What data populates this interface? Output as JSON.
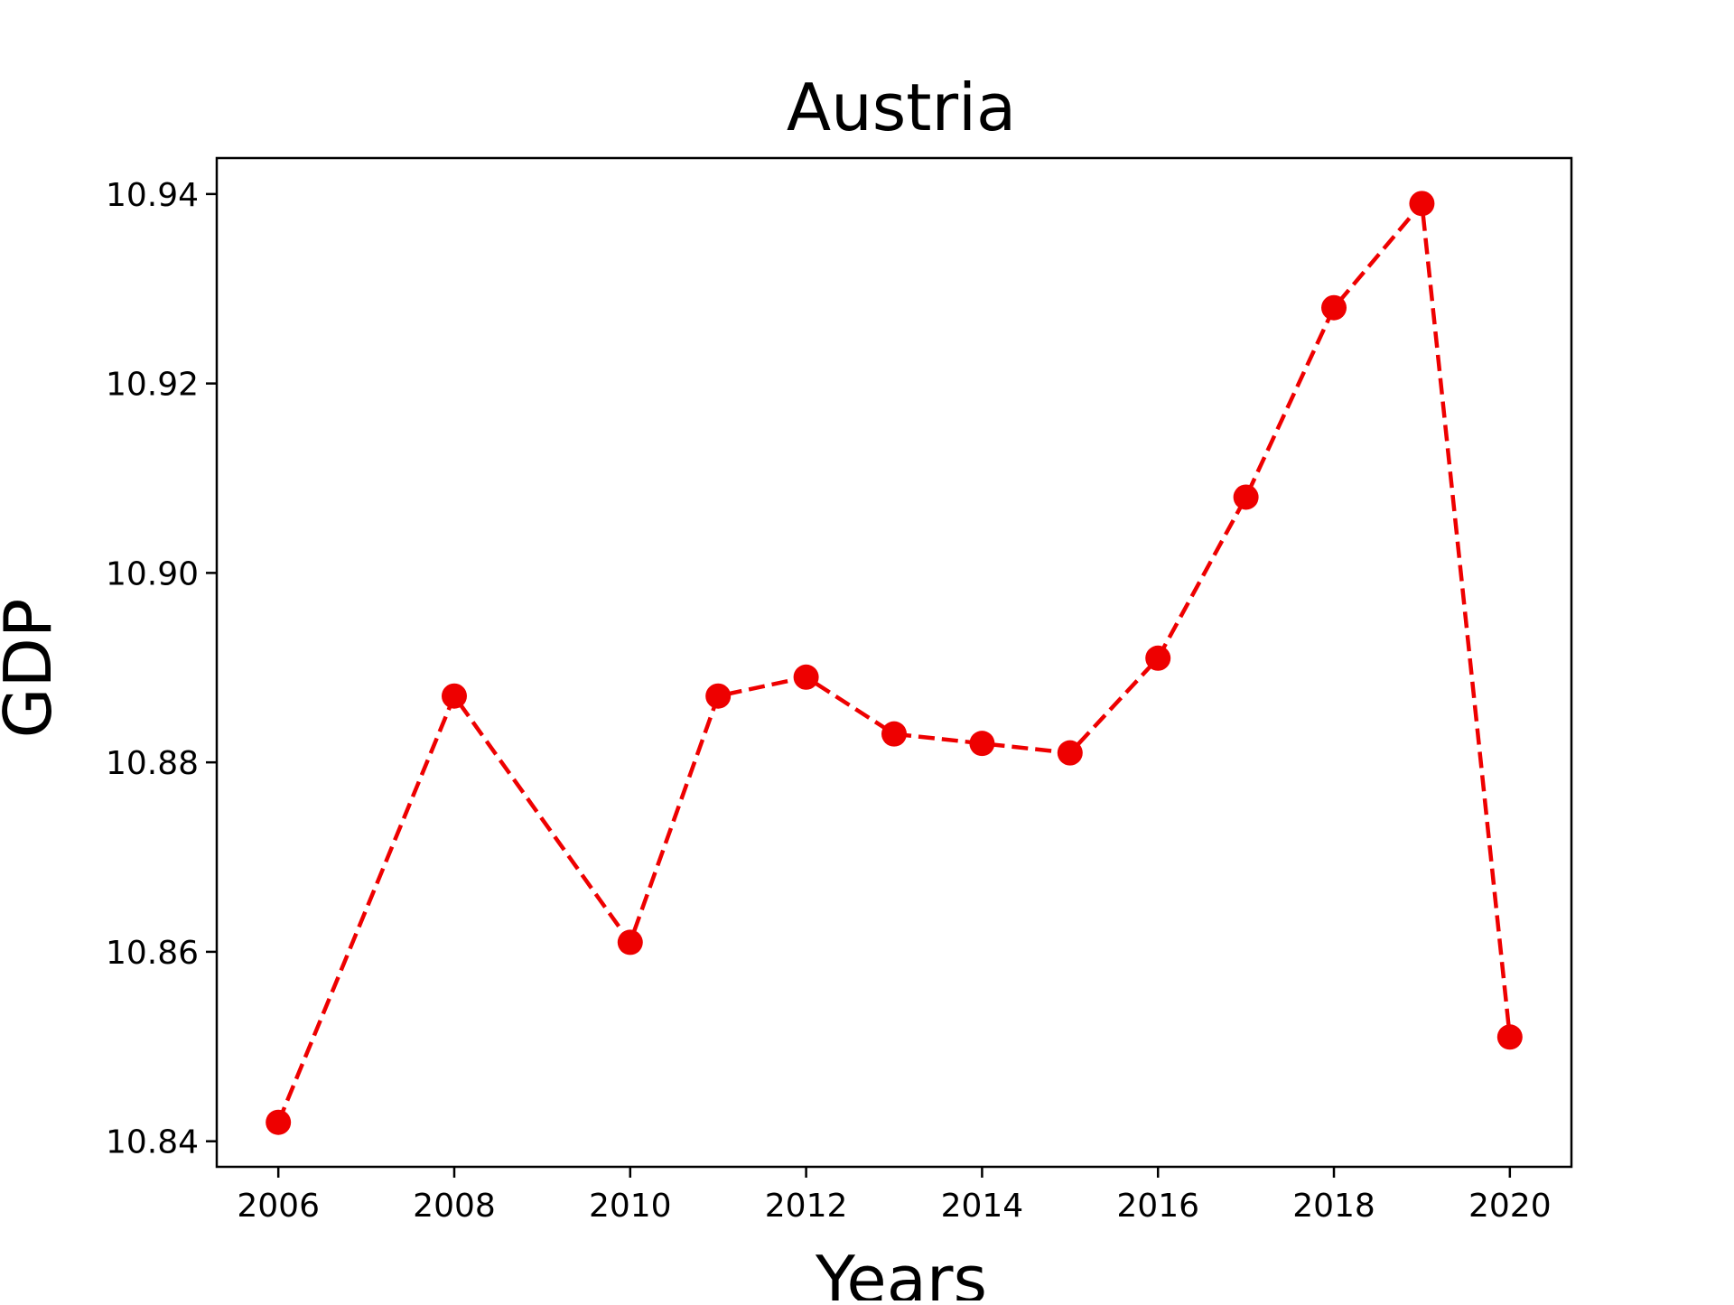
{
  "chart_data": {
    "type": "line",
    "title": "Austria",
    "xlabel": "Years",
    "ylabel": "GDP",
    "xlim": [
      2005.3,
      2020.7
    ],
    "ylim": [
      10.8373,
      10.9438
    ],
    "xticks": [
      2006,
      2008,
      2010,
      2012,
      2014,
      2016,
      2018,
      2020
    ],
    "xtick_labels": [
      "2006",
      "2008",
      "2010",
      "2012",
      "2014",
      "2016",
      "2018",
      "2020"
    ],
    "yticks": [
      10.84,
      10.86,
      10.88,
      10.9,
      10.92,
      10.94
    ],
    "ytick_labels": [
      "10.84",
      "10.86",
      "10.88",
      "10.90",
      "10.92",
      "10.94"
    ],
    "grid": false,
    "series": [
      {
        "color": "#ee0000",
        "line_style": "dashed",
        "marker": "circle",
        "x": [
          2006,
          2008,
          2010,
          2011,
          2012,
          2013,
          2014,
          2015,
          2016,
          2017,
          2018,
          2019,
          2020
        ],
        "y": [
          10.842,
          10.887,
          10.861,
          10.887,
          10.889,
          10.883,
          10.882,
          10.881,
          10.891,
          10.908,
          10.928,
          10.939,
          10.851
        ]
      }
    ]
  }
}
